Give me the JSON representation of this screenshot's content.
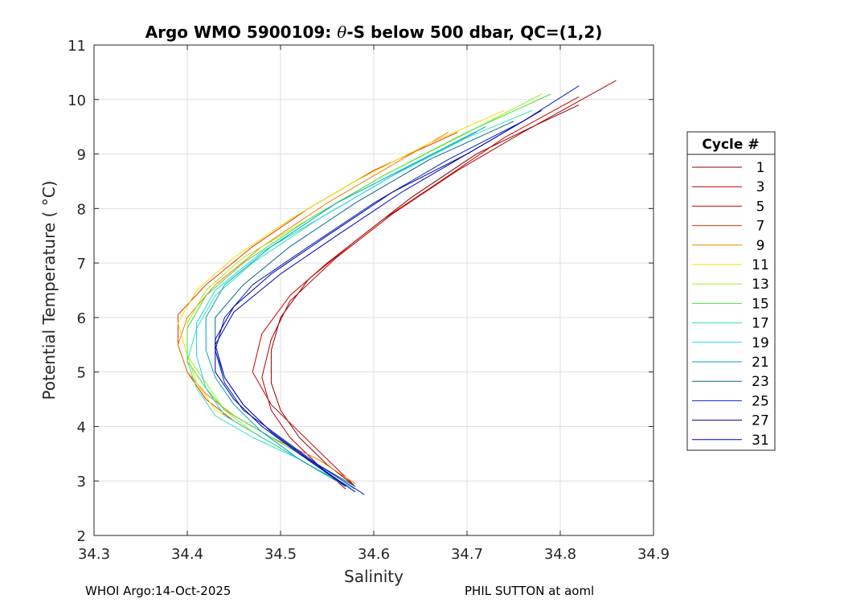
{
  "footer": {
    "left": "WHOI Argo:14-Oct-2025",
    "right": "PHIL SUTTON at aoml"
  },
  "chart_data": {
    "type": "line",
    "title": "Argo WMO 5900109: θ-S below 500 dbar,  QC=(1,2)",
    "title_prefix": "Argo WMO 5900109: ",
    "title_theta": "θ",
    "title_suffix": "-S below 500 dbar,  QC=(1,2)",
    "xlabel": "Salinity",
    "ylabel": "Potential Temperature ( °C)",
    "xlim": [
      34.3,
      34.9
    ],
    "ylim": [
      2,
      11
    ],
    "xticks": [
      "34.3",
      "34.4",
      "34.5",
      "34.6",
      "34.7",
      "34.8",
      "34.9"
    ],
    "yticks": [
      "2",
      "3",
      "4",
      "5",
      "6",
      "7",
      "8",
      "9",
      "10",
      "11"
    ],
    "grid": true,
    "legend": {
      "title": "Cycle #",
      "placement": "right-outside",
      "entries": [
        {
          "label": "1",
          "color": "#8B0000"
        },
        {
          "label": "3",
          "color": "#B00000"
        },
        {
          "label": "5",
          "color": "#D00000"
        },
        {
          "label": "7",
          "color": "#E83000"
        },
        {
          "label": "9",
          "color": "#F08000"
        },
        {
          "label": "11",
          "color": "#F0E000"
        },
        {
          "label": "13",
          "color": "#A0F020"
        },
        {
          "label": "15",
          "color": "#40E040"
        },
        {
          "label": "17",
          "color": "#30E8B0"
        },
        {
          "label": "19",
          "color": "#20D0E0"
        },
        {
          "label": "21",
          "color": "#00A0C0"
        },
        {
          "label": "23",
          "color": "#006890"
        },
        {
          "label": "25",
          "color": "#0020D0"
        },
        {
          "label": "27",
          "color": "#000090"
        },
        {
          "label": "31",
          "color": "#0000C0"
        }
      ]
    },
    "series": [
      {
        "name": "1",
        "color": "#8B0000",
        "points": [
          [
            34.58,
            2.9
          ],
          [
            34.55,
            3.3
          ],
          [
            34.52,
            3.8
          ],
          [
            34.5,
            4.3
          ],
          [
            34.49,
            4.8
          ],
          [
            34.49,
            5.4
          ],
          [
            34.5,
            6.0
          ],
          [
            34.53,
            6.7
          ],
          [
            34.58,
            7.4
          ],
          [
            34.64,
            8.2
          ],
          [
            34.71,
            9.0
          ],
          [
            34.77,
            9.5
          ],
          [
            34.82,
            9.9
          ]
        ]
      },
      {
        "name": "3",
        "color": "#B00000",
        "points": [
          [
            34.57,
            2.85
          ],
          [
            34.54,
            3.3
          ],
          [
            34.51,
            3.8
          ],
          [
            34.49,
            4.3
          ],
          [
            34.48,
            4.9
          ],
          [
            34.49,
            5.6
          ],
          [
            34.51,
            6.3
          ],
          [
            34.56,
            7.1
          ],
          [
            34.62,
            7.9
          ],
          [
            34.69,
            8.7
          ],
          [
            34.76,
            9.4
          ],
          [
            34.86,
            10.35
          ]
        ]
      },
      {
        "name": "5",
        "color": "#D00000",
        "points": [
          [
            34.58,
            2.9
          ],
          [
            34.55,
            3.4
          ],
          [
            34.52,
            3.9
          ],
          [
            34.49,
            4.4
          ],
          [
            34.47,
            5.0
          ],
          [
            34.48,
            5.7
          ],
          [
            34.51,
            6.4
          ],
          [
            34.55,
            7.0
          ],
          [
            34.61,
            7.8
          ],
          [
            34.68,
            8.6
          ],
          [
            34.74,
            9.3
          ],
          [
            34.82,
            10.05
          ]
        ]
      },
      {
        "name": "7",
        "color": "#E83000",
        "points": [
          [
            34.57,
            2.9
          ],
          [
            34.53,
            3.3
          ],
          [
            34.49,
            3.7
          ],
          [
            34.45,
            4.1
          ],
          [
            34.42,
            4.5
          ],
          [
            34.4,
            5.0
          ],
          [
            34.39,
            5.5
          ],
          [
            34.39,
            6.05
          ],
          [
            34.42,
            6.6
          ],
          [
            34.47,
            7.3
          ],
          [
            34.53,
            8.0
          ],
          [
            34.6,
            8.7
          ],
          [
            34.69,
            9.4
          ]
        ]
      },
      {
        "name": "9",
        "color": "#F08000",
        "points": [
          [
            34.58,
            2.95
          ],
          [
            34.54,
            3.4
          ],
          [
            34.49,
            3.8
          ],
          [
            34.45,
            4.2
          ],
          [
            34.42,
            4.6
          ],
          [
            34.4,
            5.0
          ],
          [
            34.39,
            5.5
          ],
          [
            34.4,
            6.0
          ],
          [
            34.43,
            6.6
          ],
          [
            34.48,
            7.3
          ],
          [
            34.55,
            8.1
          ],
          [
            34.62,
            8.8
          ],
          [
            34.68,
            9.4
          ]
        ]
      },
      {
        "name": "11",
        "color": "#F0E000",
        "points": [
          [
            34.57,
            2.9
          ],
          [
            34.52,
            3.4
          ],
          [
            34.47,
            3.9
          ],
          [
            34.43,
            4.3
          ],
          [
            34.41,
            4.8
          ],
          [
            34.4,
            5.3
          ],
          [
            34.39,
            5.9
          ],
          [
            34.41,
            6.5
          ],
          [
            34.45,
            7.1
          ],
          [
            34.51,
            7.8
          ],
          [
            34.58,
            8.5
          ],
          [
            34.66,
            9.2
          ],
          [
            34.74,
            9.8
          ]
        ]
      },
      {
        "name": "13",
        "color": "#A0F020",
        "points": [
          [
            34.57,
            2.9
          ],
          [
            34.52,
            3.4
          ],
          [
            34.47,
            3.9
          ],
          [
            34.44,
            4.3
          ],
          [
            34.42,
            4.8
          ],
          [
            34.4,
            5.3
          ],
          [
            34.4,
            5.9
          ],
          [
            34.42,
            6.5
          ],
          [
            34.46,
            7.1
          ],
          [
            34.53,
            7.8
          ],
          [
            34.61,
            8.6
          ],
          [
            34.69,
            9.3
          ],
          [
            34.78,
            10.1
          ]
        ]
      },
      {
        "name": "15",
        "color": "#40E040",
        "points": [
          [
            34.58,
            2.9
          ],
          [
            34.53,
            3.4
          ],
          [
            34.48,
            3.9
          ],
          [
            34.44,
            4.3
          ],
          [
            34.42,
            4.7
          ],
          [
            34.4,
            5.2
          ],
          [
            34.4,
            5.8
          ],
          [
            34.42,
            6.4
          ],
          [
            34.46,
            7.0
          ],
          [
            34.53,
            7.8
          ],
          [
            34.61,
            8.6
          ],
          [
            34.7,
            9.4
          ],
          [
            34.79,
            10.1
          ]
        ]
      },
      {
        "name": "17",
        "color": "#30E8B0",
        "points": [
          [
            34.57,
            2.9
          ],
          [
            34.52,
            3.4
          ],
          [
            34.47,
            3.8
          ],
          [
            34.43,
            4.2
          ],
          [
            34.41,
            4.7
          ],
          [
            34.4,
            5.2
          ],
          [
            34.41,
            5.8
          ],
          [
            34.43,
            6.4
          ],
          [
            34.47,
            7.0
          ],
          [
            34.54,
            7.8
          ],
          [
            34.62,
            8.6
          ],
          [
            34.7,
            9.3
          ],
          [
            34.77,
            9.8
          ]
        ]
      },
      {
        "name": "19",
        "color": "#20D0E0",
        "points": [
          [
            34.58,
            2.85
          ],
          [
            34.53,
            3.3
          ],
          [
            34.48,
            3.8
          ],
          [
            34.44,
            4.2
          ],
          [
            34.42,
            4.7
          ],
          [
            34.41,
            5.3
          ],
          [
            34.41,
            5.9
          ],
          [
            34.43,
            6.5
          ],
          [
            34.48,
            7.2
          ],
          [
            34.55,
            7.9
          ],
          [
            34.63,
            8.7
          ],
          [
            34.71,
            9.4
          ]
        ]
      },
      {
        "name": "21",
        "color": "#00A0C0",
        "points": [
          [
            34.57,
            2.9
          ],
          [
            34.52,
            3.4
          ],
          [
            34.48,
            3.9
          ],
          [
            34.45,
            4.4
          ],
          [
            34.43,
            4.9
          ],
          [
            34.42,
            5.4
          ],
          [
            34.42,
            6.0
          ],
          [
            34.44,
            6.6
          ],
          [
            34.49,
            7.3
          ],
          [
            34.56,
            8.1
          ],
          [
            34.64,
            8.8
          ],
          [
            34.72,
            9.5
          ]
        ]
      },
      {
        "name": "23",
        "color": "#006890",
        "points": [
          [
            34.58,
            2.9
          ],
          [
            34.53,
            3.4
          ],
          [
            34.49,
            3.9
          ],
          [
            34.46,
            4.4
          ],
          [
            34.44,
            4.9
          ],
          [
            34.43,
            5.4
          ],
          [
            34.43,
            6.0
          ],
          [
            34.46,
            6.6
          ],
          [
            34.51,
            7.3
          ],
          [
            34.58,
            8.1
          ],
          [
            34.66,
            8.9
          ],
          [
            34.75,
            9.6
          ]
        ]
      },
      {
        "name": "25",
        "color": "#0020D0",
        "points": [
          [
            34.59,
            2.75
          ],
          [
            34.54,
            3.3
          ],
          [
            34.5,
            3.8
          ],
          [
            34.46,
            4.3
          ],
          [
            34.44,
            4.8
          ],
          [
            34.43,
            5.4
          ],
          [
            34.44,
            6.0
          ],
          [
            34.47,
            6.6
          ],
          [
            34.53,
            7.3
          ],
          [
            34.6,
            8.1
          ],
          [
            34.68,
            8.9
          ],
          [
            34.76,
            9.6
          ],
          [
            34.82,
            10.25
          ]
        ]
      },
      {
        "name": "27",
        "color": "#000090",
        "points": [
          [
            34.57,
            2.9
          ],
          [
            34.52,
            3.5
          ],
          [
            34.48,
            4.0
          ],
          [
            34.45,
            4.5
          ],
          [
            34.43,
            5.0
          ],
          [
            34.43,
            5.6
          ],
          [
            34.45,
            6.2
          ],
          [
            34.49,
            6.8
          ],
          [
            34.55,
            7.5
          ],
          [
            34.62,
            8.3
          ],
          [
            34.7,
            9.0
          ],
          [
            34.77,
            9.7
          ]
        ]
      },
      {
        "name": "31",
        "color": "#0000C0",
        "points": [
          [
            34.58,
            2.8
          ],
          [
            34.53,
            3.4
          ],
          [
            34.49,
            3.9
          ],
          [
            34.46,
            4.4
          ],
          [
            34.44,
            4.9
          ],
          [
            34.43,
            5.5
          ],
          [
            34.45,
            6.1
          ],
          [
            34.5,
            6.8
          ],
          [
            34.56,
            7.5
          ],
          [
            34.63,
            8.3
          ],
          [
            34.7,
            9.0
          ],
          [
            34.78,
            9.8
          ]
        ]
      }
    ]
  }
}
